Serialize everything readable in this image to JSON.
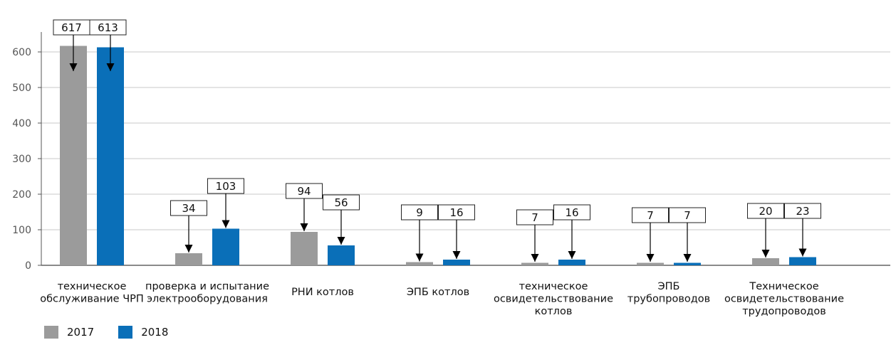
{
  "chart_data": {
    "type": "bar",
    "categories": [
      [
        "техническое",
        "обслуживание ЧРП"
      ],
      [
        "проверка и испытание",
        "электрооборудования"
      ],
      [
        "РНИ котлов"
      ],
      [
        "ЭПБ котлов"
      ],
      [
        "техническое",
        "освидетельствование",
        "котлов"
      ],
      [
        "ЭПБ",
        "трубопроводов"
      ],
      [
        "Техническое",
        "освидетельствование",
        "трудопроводов"
      ]
    ],
    "series": [
      {
        "name": "2017",
        "color": "#9b9b9b",
        "values": [
          617,
          34,
          94,
          9,
          7,
          7,
          20
        ]
      },
      {
        "name": "2018",
        "color": "#0a6fb8",
        "values": [
          613,
          103,
          56,
          16,
          16,
          7,
          23
        ]
      }
    ],
    "ylim": [
      0,
      650
    ],
    "yticks": [
      0,
      100,
      200,
      300,
      400,
      500,
      600
    ],
    "grid": true,
    "legend_position": "bottom-left",
    "data_labels": "boxed callouts with arrows above bars"
  }
}
